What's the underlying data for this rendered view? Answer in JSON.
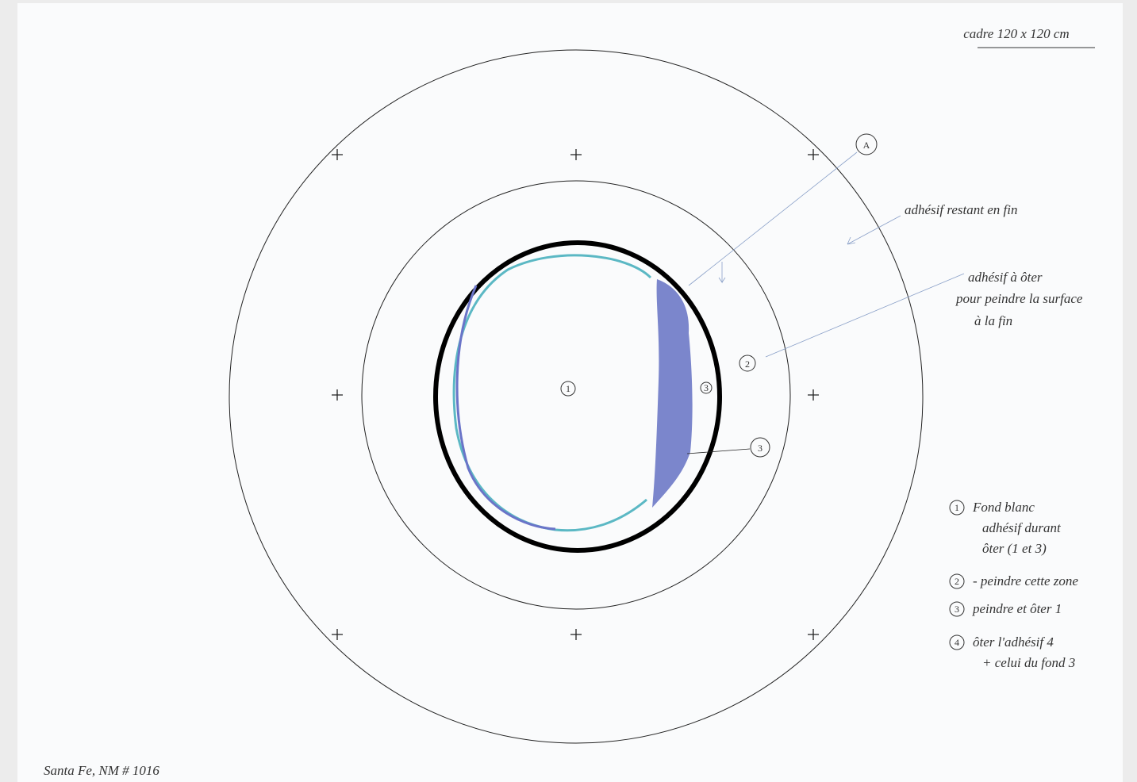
{
  "header": {
    "frame": "cadre 120 x 120 cm"
  },
  "markers": {
    "a": "A",
    "zone1": "1",
    "zone2": "2",
    "zone3": "3",
    "zone3b": "3"
  },
  "callouts": {
    "adhesive_remaining": "adhésif restant en fin",
    "adhesive_remove": [
      "adhésif à ôter",
      "pour peindre la surface",
      "à la fin"
    ]
  },
  "legend": [
    {
      "number": "1",
      "lines": [
        "Fond blanc",
        "adhésif durant",
        "ôter (1 et 3)"
      ]
    },
    {
      "number": "2",
      "lines": [
        "- peindre cette zone"
      ]
    },
    {
      "number": "3",
      "lines": [
        "peindre et ôter 1"
      ]
    },
    {
      "number": "4",
      "lines": [
        "ôter l'adhésif 4",
        "+ celui du fond 3"
      ]
    }
  ],
  "footer": "Santa Fe, NM # 1016"
}
